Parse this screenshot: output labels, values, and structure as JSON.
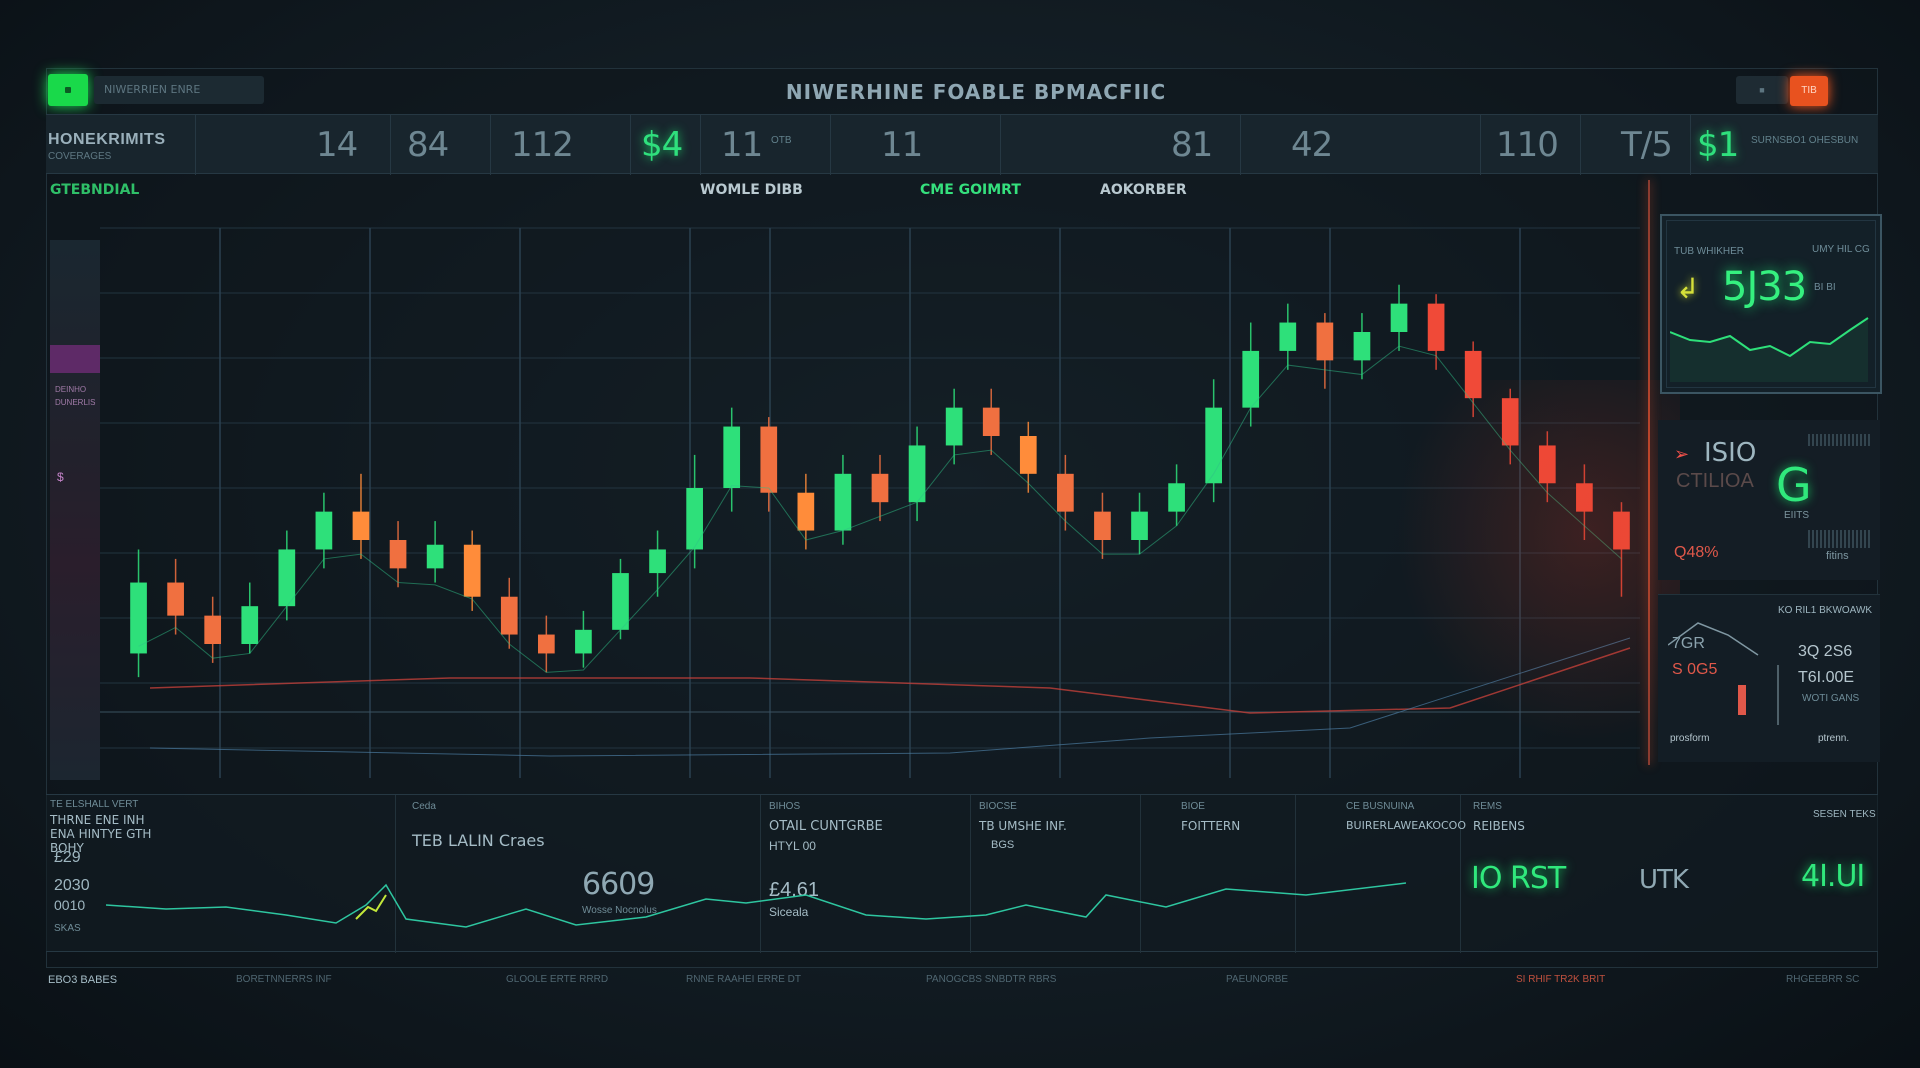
{
  "titlebar": {
    "app_tag": "NIWERRIEN ENRE",
    "title": "NIWERHINE FOABLE BPMACFIIC",
    "min_label": "■",
    "close_label": "TIB"
  },
  "ticker": {
    "label": "HONEKRIMITS",
    "sublabel": "COVERAGES",
    "cells": [
      {
        "value": "14",
        "small": "",
        "green": false
      },
      {
        "value": "84",
        "small": "",
        "green": false
      },
      {
        "value": "112",
        "small": "",
        "green": false
      },
      {
        "value": "$4",
        "small": "",
        "green": true
      },
      {
        "value": "11",
        "small": "OTB",
        "green": false
      },
      {
        "value": "11",
        "small": "",
        "green": false
      },
      {
        "value": "81",
        "small": "",
        "green": false
      },
      {
        "value": "42",
        "small": "",
        "green": false
      },
      {
        "value": "110",
        "small": "",
        "green": false
      },
      {
        "value": "T/5",
        "small": "",
        "green": false
      },
      {
        "value": "$1",
        "small": "SURNSBO1 OHESBUN",
        "green": true
      }
    ]
  },
  "chart": {
    "tabs": [
      {
        "label": "GTEBNDIAL",
        "color": "#2fbf68"
      },
      {
        "label": "WOMLE DIBB",
        "color": "#b9c9d0"
      },
      {
        "label": "CME GOIMRT",
        "color": "#35e07d"
      },
      {
        "label": "AOKORBER",
        "color": "#b9c9d0"
      }
    ],
    "left_panel_text": [
      "DEINHO",
      "DUNERLIS"
    ],
    "marker_label": "$"
  },
  "panel1": {
    "top_left": "TUB WHIKHER",
    "top_right": "UMY HIL CG",
    "value": "5J33",
    "side": "BI BI"
  },
  "panel2": {
    "value": "ISIO",
    "sub": "CTILIOA",
    "big": "G",
    "small1": "EIITS",
    "small2": "Q48%",
    "small3": "fitins"
  },
  "panel3": {
    "title": "KO RIL1 BKWOAWK",
    "v1": "7GR",
    "v2": "3Q 2S6",
    "v3": "S 0G5",
    "v4": "T6I.00E",
    "sub": "WOTI GANS",
    "foot_left": "prosform",
    "foot_right": "ptrenn."
  },
  "bottom": {
    "cells": [
      {
        "head": "TE ELSHALL VERT",
        "title": "THRNE ENE INH ENA HINTYE GTH BOHY",
        "v1": "£29",
        "v2": "2030",
        "v3": "0010",
        "sub": "SKAS"
      },
      {
        "head": "Ceda",
        "title": "TEB LALIN Craes",
        "value": "6609",
        "sub": "Wosse Nocnolus"
      },
      {
        "head": "BIHOS",
        "title": "OTAIL CUNTGRBE",
        "sub": "HTYL 00",
        "value": "£4.61",
        "foot": "Siceala"
      },
      {
        "head": "BIOCSE",
        "title": "TB UMSHE INF.",
        "sub": "BGS"
      },
      {
        "head": "BIOE",
        "title": "FOITTERN"
      },
      {
        "head": "CE BUSNUINA",
        "title": "BUIRERLAWEAKOCOO"
      },
      {
        "head": "REMS",
        "title": "REIBENS"
      },
      {
        "head": "SESEN TEKS",
        "v1": "IO RST",
        "v2": "UTK",
        "v3": "4I.UI"
      }
    ]
  },
  "statusbar": {
    "items": [
      "EBO3 BABES",
      "BORETNNERRS INF",
      "GLOOLE ERTE RRRD",
      "RNNE RAAHEI ERRE DT",
      "PANOGCBS SNBDTR RBRS",
      "PAEUNORBE",
      "SI RHIF TR2K BRIT",
      "RHGEEBRR SC"
    ]
  },
  "chart_data": {
    "type": "candlestick",
    "colors": {
      "up": "#2ee07a",
      "down": "#f07040",
      "warm": "#ff8c3a",
      "bear": "#f04a38"
    },
    "candles": [
      {
        "o": 40,
        "c": 55,
        "h": 62,
        "l": 35
      },
      {
        "o": 55,
        "c": 48,
        "h": 60,
        "l": 44
      },
      {
        "o": 48,
        "c": 42,
        "h": 52,
        "l": 38
      },
      {
        "o": 42,
        "c": 50,
        "h": 55,
        "l": 40
      },
      {
        "o": 50,
        "c": 62,
        "h": 66,
        "l": 47
      },
      {
        "o": 62,
        "c": 70,
        "h": 74,
        "l": 58
      },
      {
        "o": 70,
        "c": 64,
        "h": 78,
        "l": 60
      },
      {
        "o": 64,
        "c": 58,
        "h": 68,
        "l": 54
      },
      {
        "o": 58,
        "c": 63,
        "h": 68,
        "l": 55
      },
      {
        "o": 63,
        "c": 52,
        "h": 66,
        "l": 49
      },
      {
        "o": 52,
        "c": 44,
        "h": 56,
        "l": 41
      },
      {
        "o": 44,
        "c": 40,
        "h": 48,
        "l": 36
      },
      {
        "o": 40,
        "c": 45,
        "h": 49,
        "l": 37
      },
      {
        "o": 45,
        "c": 57,
        "h": 60,
        "l": 43
      },
      {
        "o": 57,
        "c": 62,
        "h": 66,
        "l": 52
      },
      {
        "o": 62,
        "c": 75,
        "h": 82,
        "l": 58
      },
      {
        "o": 75,
        "c": 88,
        "h": 92,
        "l": 70
      },
      {
        "o": 88,
        "c": 74,
        "h": 90,
        "l": 70
      },
      {
        "o": 74,
        "c": 66,
        "h": 78,
        "l": 62
      },
      {
        "o": 66,
        "c": 78,
        "h": 82,
        "l": 63
      },
      {
        "o": 78,
        "c": 72,
        "h": 82,
        "l": 68
      },
      {
        "o": 72,
        "c": 84,
        "h": 88,
        "l": 68
      },
      {
        "o": 84,
        "c": 92,
        "h": 96,
        "l": 80
      },
      {
        "o": 92,
        "c": 86,
        "h": 96,
        "l": 82
      },
      {
        "o": 86,
        "c": 78,
        "h": 89,
        "l": 74
      },
      {
        "o": 78,
        "c": 70,
        "h": 82,
        "l": 66
      },
      {
        "o": 70,
        "c": 64,
        "h": 74,
        "l": 60
      },
      {
        "o": 64,
        "c": 70,
        "h": 74,
        "l": 61
      },
      {
        "o": 70,
        "c": 76,
        "h": 80,
        "l": 67
      },
      {
        "o": 76,
        "c": 92,
        "h": 98,
        "l": 72
      },
      {
        "o": 92,
        "c": 104,
        "h": 110,
        "l": 88
      },
      {
        "o": 104,
        "c": 110,
        "h": 114,
        "l": 100
      },
      {
        "o": 110,
        "c": 102,
        "h": 112,
        "l": 96
      },
      {
        "o": 102,
        "c": 108,
        "h": 112,
        "l": 98
      },
      {
        "o": 108,
        "c": 114,
        "h": 118,
        "l": 104
      },
      {
        "o": 114,
        "c": 104,
        "h": 116,
        "l": 100
      },
      {
        "o": 104,
        "c": 94,
        "h": 106,
        "l": 90
      },
      {
        "o": 94,
        "c": 84,
        "h": 96,
        "l": 80
      },
      {
        "o": 84,
        "c": 76,
        "h": 87,
        "l": 72
      },
      {
        "o": 76,
        "c": 70,
        "h": 80,
        "l": 64
      },
      {
        "o": 70,
        "c": 62,
        "h": 72,
        "l": 52
      }
    ],
    "ylim": [
      20,
      130
    ]
  }
}
